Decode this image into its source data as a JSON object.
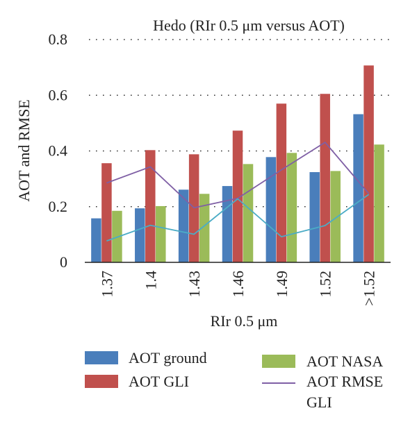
{
  "chart_data": {
    "type": "bar",
    "title": "Hedo (RIr 0.5 μm versus AOT)",
    "xlabel": "RIr 0.5 μm",
    "ylabel": "AOT and RMSE",
    "ylim": [
      0,
      0.8
    ],
    "yticks": [
      "0",
      "0.2",
      "0.4",
      "0.6",
      "0.8"
    ],
    "ytick_values": [
      0,
      0.2,
      0.4,
      0.6,
      0.8
    ],
    "grid": "horizontal dotted",
    "legend_placement": "bottom",
    "categories": [
      "1.37",
      "1.4",
      "1.43",
      "1.46",
      "1.49",
      "1.52",
      ">1.52"
    ],
    "series": [
      {
        "name": "AOT ground",
        "kind": "bar",
        "color": "#4a7ebb",
        "values": [
          0.158,
          0.194,
          0.261,
          0.274,
          0.378,
          0.324,
          0.532
        ]
      },
      {
        "name": "AOT GLI",
        "kind": "bar",
        "color": "#c0504d",
        "values": [
          0.356,
          0.403,
          0.388,
          0.473,
          0.57,
          0.605,
          0.707
        ]
      },
      {
        "name": "AOT NASA",
        "kind": "bar",
        "color": "#9bbb59",
        "values": [
          0.185,
          0.202,
          0.246,
          0.353,
          0.393,
          0.328,
          0.423
        ]
      },
      {
        "name": "AOT RMSE GLI",
        "kind": "line",
        "color": "#7f5fa5",
        "values": [
          0.285,
          0.343,
          0.196,
          0.23,
          0.332,
          0.431,
          0.247
        ]
      },
      {
        "name": "",
        "kind": "line",
        "color": "#4bacc6",
        "values": [
          0.077,
          0.133,
          0.101,
          0.228,
          0.092,
          0.132,
          0.244
        ]
      }
    ],
    "legend": [
      {
        "label": "AOT ground",
        "color": "#4a7ebb",
        "swatch": "box"
      },
      {
        "label": "AOT NASA",
        "color": "#9bbb59",
        "swatch": "box"
      },
      {
        "label": "AOT GLI",
        "color": "#c0504d",
        "swatch": "box"
      },
      {
        "label_lines": [
          "AOT RMSE",
          "GLI"
        ],
        "color": "#7f5fa5",
        "swatch": "line"
      }
    ]
  }
}
